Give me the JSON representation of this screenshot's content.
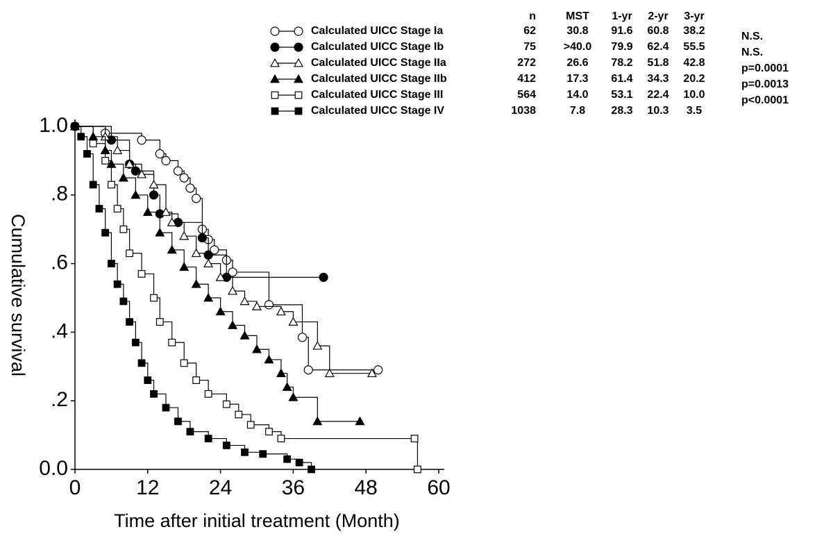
{
  "chart_data": {
    "type": "step",
    "x_label": "Time after initial treatment (Month)",
    "y_label": "Cumulative survival",
    "xlim": [
      0,
      60
    ],
    "xticks": [
      0,
      12,
      24,
      36,
      48,
      60
    ],
    "ylim": [
      0,
      1
    ],
    "yticks": [
      {
        "value": 0,
        "label": "0.0"
      },
      {
        "value": 0.2,
        "label": ".2"
      },
      {
        "value": 0.4,
        "label": ".4"
      },
      {
        "value": 0.6,
        "label": ".6"
      },
      {
        "value": 0.8,
        "label": ".8"
      },
      {
        "value": 1,
        "label": "1.0"
      }
    ],
    "series": [
      {
        "name": "Calculated UICC Stage Ia",
        "color": "#000000",
        "marker": "circle",
        "filled": false,
        "x": [
          0,
          5,
          11,
          14,
          15,
          17,
          18,
          19,
          20,
          21,
          22,
          23,
          25,
          26,
          32,
          37.5,
          38.5,
          50
        ],
        "values": [
          1.0,
          0.98,
          0.96,
          0.92,
          0.9,
          0.87,
          0.85,
          0.82,
          0.79,
          0.7,
          0.67,
          0.64,
          0.61,
          0.575,
          0.48,
          0.385,
          0.29,
          0.29
        ]
      },
      {
        "name": "Calculated UICC Stage Ib",
        "color": "#000000",
        "marker": "circle",
        "filled": true,
        "x": [
          0,
          6,
          9,
          10,
          13,
          14,
          17,
          21,
          22,
          25,
          41
        ],
        "values": [
          1.0,
          0.96,
          0.89,
          0.87,
          0.8,
          0.745,
          0.72,
          0.675,
          0.625,
          0.56,
          0.56
        ]
      },
      {
        "name": "Calculated UICC Stage IIa",
        "color": "#000000",
        "marker": "triangle",
        "filled": false,
        "x": [
          0,
          5,
          7,
          9,
          11,
          13,
          15,
          16,
          18,
          20,
          22,
          24,
          26,
          28,
          30,
          34,
          36,
          40,
          42,
          49
        ],
        "values": [
          1.0,
          0.97,
          0.93,
          0.89,
          0.86,
          0.83,
          0.75,
          0.72,
          0.68,
          0.63,
          0.6,
          0.56,
          0.52,
          0.49,
          0.475,
          0.46,
          0.43,
          0.36,
          0.28,
          0.28
        ]
      },
      {
        "name": "Calculated UICC Stage IIb",
        "color": "#000000",
        "marker": "triangle",
        "filled": true,
        "x": [
          0,
          3,
          5,
          6,
          8,
          10,
          12,
          14,
          16,
          18,
          20,
          22,
          24,
          26,
          28,
          30,
          32,
          34,
          35,
          36,
          40,
          47
        ],
        "values": [
          1.0,
          0.97,
          0.93,
          0.89,
          0.85,
          0.8,
          0.75,
          0.69,
          0.64,
          0.59,
          0.54,
          0.5,
          0.46,
          0.42,
          0.39,
          0.35,
          0.32,
          0.28,
          0.24,
          0.21,
          0.14,
          0.14
        ]
      },
      {
        "name": "Calculated UICC Stage III",
        "color": "#000000",
        "marker": "square",
        "filled": false,
        "x": [
          0,
          3,
          5,
          6,
          7,
          8,
          9,
          11,
          13,
          14,
          16,
          18,
          20,
          22,
          25,
          27,
          29,
          32,
          34,
          56,
          56.5
        ],
        "values": [
          1.0,
          0.95,
          0.9,
          0.83,
          0.76,
          0.7,
          0.63,
          0.57,
          0.5,
          0.43,
          0.37,
          0.31,
          0.26,
          0.22,
          0.19,
          0.16,
          0.13,
          0.11,
          0.09,
          0.09,
          0.0
        ]
      },
      {
        "name": "Calculated UICC Stage IV",
        "color": "#000000",
        "marker": "square",
        "filled": true,
        "x": [
          0,
          1,
          2,
          3,
          4,
          5,
          6,
          7,
          8,
          9,
          10,
          11,
          12,
          13,
          15,
          17,
          19,
          22,
          25,
          28,
          31,
          35,
          37,
          39
        ],
        "values": [
          1.0,
          0.97,
          0.92,
          0.83,
          0.76,
          0.69,
          0.6,
          0.54,
          0.49,
          0.43,
          0.37,
          0.31,
          0.26,
          0.22,
          0.18,
          0.14,
          0.11,
          0.09,
          0.07,
          0.05,
          0.045,
          0.03,
          0.02,
          0.0
        ]
      }
    ],
    "table": {
      "columns": [
        "n",
        "MST",
        "1-yr",
        "2-yr",
        "3-yr"
      ],
      "rows": [
        [
          "62",
          "30.8",
          "91.6",
          "60.8",
          "38.2"
        ],
        [
          "75",
          ">40.0",
          "79.9",
          "62.4",
          "55.5"
        ],
        [
          "272",
          "26.6",
          "78.2",
          "51.8",
          "42.8"
        ],
        [
          "412",
          "17.3",
          "61.4",
          "34.3",
          "20.2"
        ],
        [
          "564",
          "14.0",
          "53.1",
          "22.4",
          "10.0"
        ],
        [
          "1038",
          "7.8",
          "28.3",
          "10.3",
          "3.5"
        ]
      ],
      "p_values": [
        "N.S.",
        "N.S.",
        "p=0.0001",
        "p=0.0013",
        "p<0.0001"
      ]
    }
  }
}
